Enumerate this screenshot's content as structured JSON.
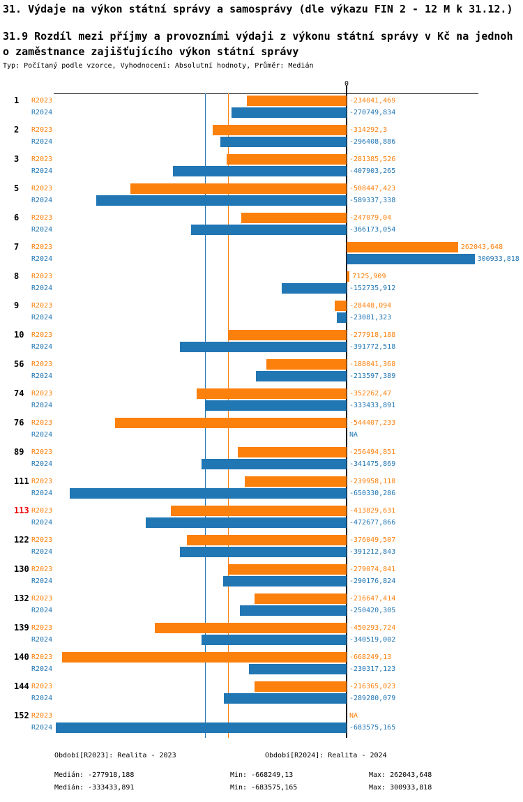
{
  "header": {
    "title": "31. Výdaje na výkon státní správy a samosprávy (dle výkazu FIN 2 - 12 M k 31.12.)",
    "subtitle_line1": "31.9 Rozdíl mezi příjmy a provozními výdaji z výkonu státní správy v Kč na jednoh",
    "subtitle_line2": "o zaměstnance zajišťujícího výkon státní správy",
    "meta": "Typ: Počítaný podle vzorce, Vyhodnocení: Absolutní hodnoty, Průměr: Medián"
  },
  "colors": {
    "r2023": "#fc800c",
    "r2024": "#2176b4",
    "highlight": "#ee0000",
    "axis": "#000000"
  },
  "chart_data": {
    "type": "bar",
    "orientation": "horizontal",
    "zero_tick_label": "0",
    "categories": [
      "1",
      "2",
      "3",
      "5",
      "6",
      "7",
      "8",
      "9",
      "10",
      "56",
      "74",
      "76",
      "89",
      "111",
      "113",
      "122",
      "130",
      "132",
      "139",
      "140",
      "144",
      "152"
    ],
    "highlighted_category": "113",
    "series": [
      {
        "name": "R2023",
        "color_key": "r2023",
        "values": [
          -234041.469,
          -314292.3,
          -281385.526,
          -508447.423,
          -247079.04,
          262043.648,
          7125.909,
          -28448.094,
          -277918.188,
          -188041.368,
          -352262.47,
          -544407.233,
          -256494.851,
          -239958.118,
          -413829.631,
          -376049.507,
          -279074.841,
          -216647.414,
          -450293.724,
          -668249.13,
          -216365.023,
          null
        ],
        "labels": [
          "-234041,469",
          "-314292,3",
          "-281385,526",
          "-508447,423",
          "-247079,04",
          "262043,648",
          "7125,909",
          "-28448,094",
          "-277918,188",
          "-188041,368",
          "-352262,47",
          "-544407,233",
          "-256494,851",
          "-239958,118",
          "-413829,631",
          "-376049,507",
          "-279074,841",
          "-216647,414",
          "-450293,724",
          "-668249,13",
          "-216365,023",
          "NA"
        ]
      },
      {
        "name": "R2024",
        "color_key": "r2024",
        "values": [
          -270749.834,
          -296408.886,
          -407903.265,
          -589337.338,
          -366173.054,
          300933.818,
          -152735.912,
          -23081.323,
          -391772.518,
          -213597.389,
          -333433.891,
          null,
          -341475.869,
          -650330.286,
          -472677.866,
          -391212.843,
          -290176.824,
          -250420.305,
          -340519.002,
          -230317.123,
          -289280.079,
          -683575.165
        ],
        "labels": [
          "-270749,834",
          "-296408,886",
          "-407903,265",
          "-589337,338",
          "-366173,054",
          "300933,818",
          "-152735,912",
          "-23081,323",
          "-391772,518",
          "-213597,389",
          "-333433,891",
          "NA",
          "-341475,869",
          "-650330,286",
          "-472677,866",
          "-391212,843",
          "-290176,824",
          "-250420,305",
          "-340519,002",
          "-230317,123",
          "-289280,079",
          "-683575,165"
        ]
      }
    ],
    "median_lines": [
      {
        "series": "R2023",
        "value": -277918.188,
        "color_key": "r2023"
      },
      {
        "series": "R2024",
        "value": -333433.891,
        "color_key": "r2024"
      }
    ],
    "stats": {
      "r2023": {
        "median": -277918.188,
        "min": -668249.13,
        "max": 262043.648
      },
      "r2024": {
        "median": -333433.891,
        "min": -683575.165,
        "max": 300933.818
      }
    },
    "xlim": [
      -683575.165,
      300933.818
    ]
  },
  "footer": {
    "legend_r2023": "Období[R2023]: Realita - 2023",
    "legend_r2024": "Období[R2024]: Realita - 2024",
    "stats_r2023": {
      "median": "Medián: -277918,188",
      "min": "Min: -668249,13",
      "max": "Max: 262043,648"
    },
    "stats_r2024": {
      "median": "Medián: -333433,891",
      "min": "Min: -683575,165",
      "max": "Max: 300933,818"
    }
  }
}
